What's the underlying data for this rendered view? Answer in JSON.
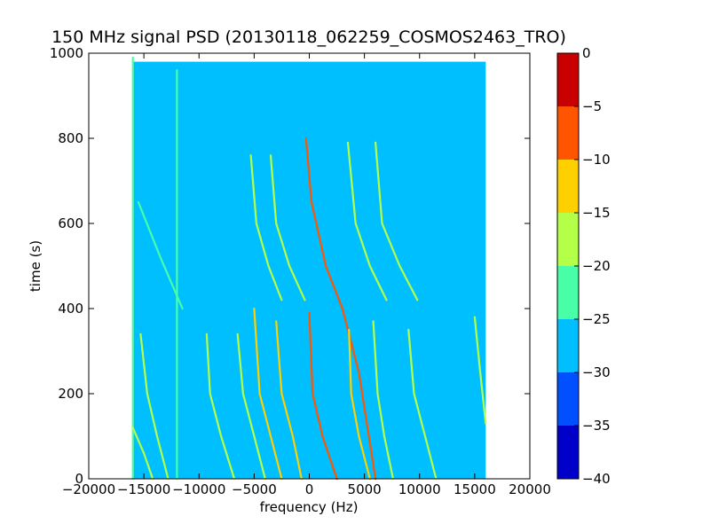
{
  "chart_data": {
    "type": "heatmap",
    "title": "150 MHz signal PSD (20130118_062259_COSMOS2463_TRO)",
    "xlabel": "frequency (Hz)",
    "ylabel": "time (s)",
    "xlim": [
      -20000,
      20000
    ],
    "ylim": [
      0,
      1000
    ],
    "x_ticks": [
      -20000,
      -15000,
      -10000,
      -5000,
      0,
      5000,
      10000,
      15000,
      20000
    ],
    "y_ticks": [
      0,
      200,
      400,
      600,
      800,
      1000
    ],
    "data_extent": {
      "x": [
        -16000,
        16000
      ],
      "y": [
        0,
        980
      ]
    },
    "background_level": -27.5,
    "colorbar": {
      "ticks": [
        0,
        -5,
        -10,
        -15,
        -20,
        -25,
        -30,
        -35,
        -40
      ],
      "range": [
        -40,
        0
      ],
      "levels": [
        {
          "from": -40,
          "to": -35,
          "color": "#0000c8"
        },
        {
          "from": -35,
          "to": -30,
          "color": "#0050ff"
        },
        {
          "from": -30,
          "to": -25,
          "color": "#00bfff"
        },
        {
          "from": -25,
          "to": -20,
          "color": "#48ffa8"
        },
        {
          "from": -20,
          "to": -15,
          "color": "#b4ff48"
        },
        {
          "from": -15,
          "to": -10,
          "color": "#ffd000"
        },
        {
          "from": -10,
          "to": -5,
          "color": "#ff5400"
        },
        {
          "from": -5,
          "to": 0,
          "color": "#c80000"
        }
      ]
    },
    "traces": [
      {
        "points": [
          [
            -16000,
            990
          ],
          [
            -16000,
            0
          ]
        ],
        "level": -24
      },
      {
        "points": [
          [
            -15300,
            340
          ],
          [
            -14700,
            200
          ],
          [
            -13800,
            100
          ],
          [
            -12800,
            0
          ]
        ],
        "level": -18
      },
      {
        "points": [
          [
            -16000,
            120
          ],
          [
            -15000,
            60
          ],
          [
            -14200,
            0
          ]
        ],
        "level": -18
      },
      {
        "points": [
          [
            -15500,
            650
          ],
          [
            -13500,
            520
          ],
          [
            -11500,
            400
          ]
        ],
        "level": -22
      },
      {
        "points": [
          [
            -12000,
            960
          ],
          [
            -12000,
            0
          ]
        ],
        "level": -22
      },
      {
        "points": [
          [
            -9300,
            340
          ],
          [
            -9000,
            200
          ],
          [
            -8000,
            100
          ],
          [
            -6800,
            0
          ]
        ],
        "level": -20
      },
      {
        "points": [
          [
            -6500,
            340
          ],
          [
            -6000,
            200
          ],
          [
            -5000,
            100
          ],
          [
            -4000,
            0
          ]
        ],
        "level": -20
      },
      {
        "points": [
          [
            -5300,
            760
          ],
          [
            -4800,
            600
          ],
          [
            -3700,
            500
          ],
          [
            -2500,
            420
          ]
        ],
        "level": -20
      },
      {
        "points": [
          [
            -3500,
            760
          ],
          [
            -3000,
            600
          ],
          [
            -1800,
            500
          ],
          [
            -400,
            420
          ]
        ],
        "level": -20
      },
      {
        "points": [
          [
            -5000,
            400
          ],
          [
            -4500,
            200
          ],
          [
            -3500,
            100
          ],
          [
            -2500,
            0
          ]
        ],
        "level": -15
      },
      {
        "points": [
          [
            -3000,
            370
          ],
          [
            -2500,
            200
          ],
          [
            -1500,
            100
          ],
          [
            -700,
            0
          ]
        ],
        "level": -15
      },
      {
        "points": [
          [
            -300,
            800
          ],
          [
            200,
            650
          ],
          [
            1500,
            500
          ],
          [
            3000,
            400
          ],
          [
            4500,
            250
          ],
          [
            6000,
            0
          ]
        ],
        "level": -10
      },
      {
        "points": [
          [
            0,
            390
          ],
          [
            300,
            200
          ],
          [
            1200,
            100
          ],
          [
            2500,
            0
          ]
        ],
        "level": -8
      },
      {
        "points": [
          [
            3500,
            790
          ],
          [
            4200,
            600
          ],
          [
            5500,
            500
          ],
          [
            7000,
            420
          ]
        ],
        "level": -20
      },
      {
        "points": [
          [
            6000,
            790
          ],
          [
            6600,
            600
          ],
          [
            8200,
            500
          ],
          [
            9800,
            420
          ]
        ],
        "level": -20
      },
      {
        "points": [
          [
            3600,
            350
          ],
          [
            3800,
            200
          ],
          [
            4500,
            100
          ],
          [
            5500,
            0
          ]
        ],
        "level": -15
      },
      {
        "points": [
          [
            5800,
            370
          ],
          [
            6200,
            200
          ],
          [
            6800,
            100
          ],
          [
            7600,
            0
          ]
        ],
        "level": -18
      },
      {
        "points": [
          [
            9000,
            350
          ],
          [
            9500,
            200
          ],
          [
            10500,
            100
          ],
          [
            11500,
            0
          ]
        ],
        "level": -20
      },
      {
        "points": [
          [
            15000,
            380
          ],
          [
            15500,
            250
          ],
          [
            16000,
            130
          ]
        ],
        "level": -20
      }
    ]
  }
}
